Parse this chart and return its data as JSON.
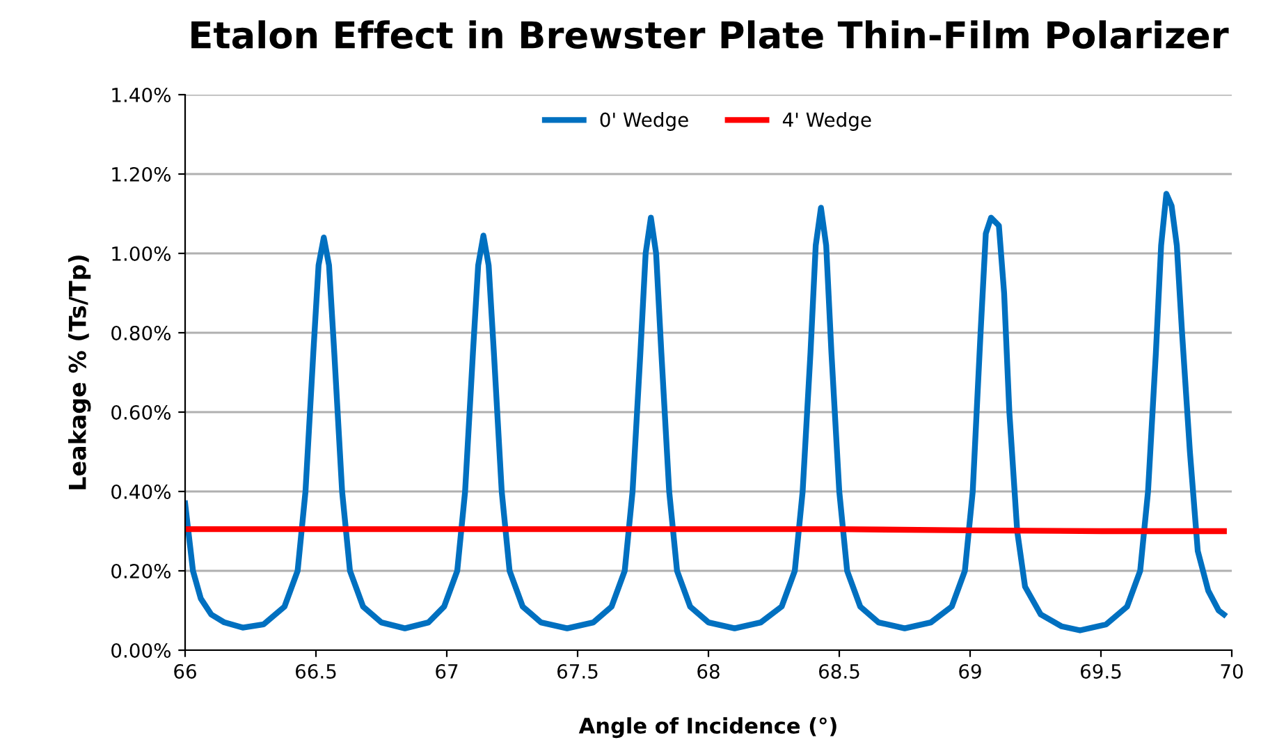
{
  "chart_data": {
    "type": "line",
    "title": "Etalon Effect in Brewster Plate Thin-Film Polarizer",
    "xlabel": "Angle of Incidence (°)",
    "ylabel": "Leakage % (Ts/Tp)",
    "xlim": [
      66,
      70
    ],
    "xticks": [
      66,
      66.5,
      67,
      67.5,
      68,
      68.5,
      69,
      69.5,
      70
    ],
    "ylim": [
      0,
      1.4
    ],
    "yticks": [
      {
        "value": 0,
        "label": "0.00%"
      },
      {
        "value": 0.2,
        "label": "0.20%"
      },
      {
        "value": 0.4,
        "label": "0.40%"
      },
      {
        "value": 0.6,
        "label": "0.60%"
      },
      {
        "value": 0.8,
        "label": "0.80%"
      },
      {
        "value": 1.0,
        "label": "1.00%"
      },
      {
        "value": 1.2,
        "label": "1.20%"
      },
      {
        "value": 1.4,
        "label": "1.40%"
      }
    ],
    "grid": "y",
    "legend": "top",
    "marker": "none",
    "line_style": "solid",
    "series": [
      {
        "name": "0' Wedge",
        "color": "#0070c0",
        "x": [
          66.0,
          66.03,
          66.06,
          66.1,
          66.15,
          66.22,
          66.3,
          66.38,
          66.43,
          66.46,
          66.49,
          66.51,
          66.53,
          66.55,
          66.57,
          66.6,
          66.63,
          66.68,
          66.75,
          66.84,
          66.93,
          66.99,
          67.04,
          67.07,
          67.1,
          67.12,
          67.14,
          67.16,
          67.18,
          67.21,
          67.24,
          67.29,
          67.36,
          67.46,
          67.56,
          67.63,
          67.68,
          67.71,
          67.74,
          67.76,
          67.78,
          67.8,
          67.82,
          67.85,
          67.88,
          67.93,
          68.0,
          68.1,
          68.2,
          68.28,
          68.33,
          68.36,
          68.39,
          68.41,
          68.43,
          68.45,
          68.47,
          68.5,
          68.53,
          68.58,
          68.65,
          68.75,
          68.85,
          68.93,
          68.98,
          69.01,
          69.04,
          69.06,
          69.08,
          69.11,
          69.13,
          69.15,
          69.18,
          69.21,
          69.27,
          69.35,
          69.42,
          69.52,
          69.6,
          69.65,
          69.68,
          69.71,
          69.73,
          69.75,
          69.77,
          69.79,
          69.81,
          69.84,
          69.87,
          69.91,
          69.95,
          69.97
        ],
        "values": [
          0.37,
          0.2,
          0.13,
          0.09,
          0.07,
          0.057,
          0.065,
          0.11,
          0.2,
          0.4,
          0.75,
          0.97,
          1.04,
          0.97,
          0.75,
          0.4,
          0.2,
          0.11,
          0.07,
          0.055,
          0.07,
          0.11,
          0.2,
          0.4,
          0.75,
          0.97,
          1.045,
          0.97,
          0.75,
          0.4,
          0.2,
          0.11,
          0.07,
          0.055,
          0.07,
          0.11,
          0.2,
          0.4,
          0.75,
          1.0,
          1.09,
          1.0,
          0.75,
          0.4,
          0.2,
          0.11,
          0.07,
          0.055,
          0.07,
          0.11,
          0.2,
          0.4,
          0.75,
          1.02,
          1.115,
          1.02,
          0.75,
          0.4,
          0.2,
          0.11,
          0.07,
          0.055,
          0.07,
          0.11,
          0.2,
          0.4,
          0.8,
          1.05,
          1.09,
          1.07,
          0.9,
          0.6,
          0.3,
          0.16,
          0.09,
          0.06,
          0.05,
          0.065,
          0.11,
          0.2,
          0.4,
          0.75,
          1.02,
          1.15,
          1.12,
          1.02,
          0.8,
          0.5,
          0.25,
          0.15,
          0.1,
          0.09
        ]
      },
      {
        "name": "4' Wedge",
        "color": "#ff0000",
        "x": [
          66,
          68.5,
          69,
          69.5,
          69.97
        ],
        "values": [
          0.305,
          0.305,
          0.302,
          0.3,
          0.3
        ]
      }
    ]
  }
}
